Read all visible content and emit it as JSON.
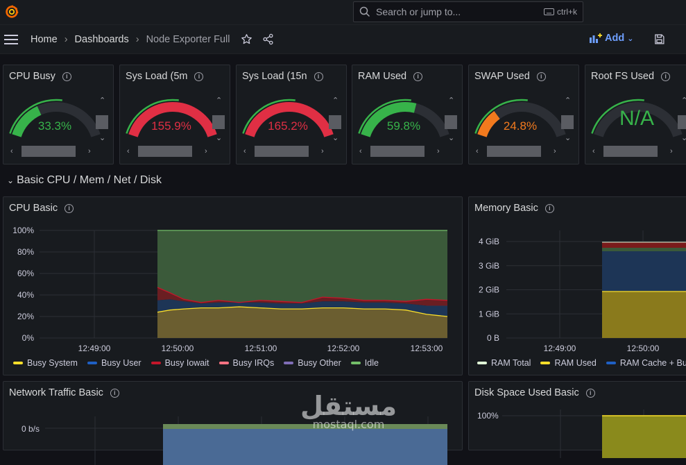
{
  "search": {
    "placeholder": "Search or jump to...",
    "shortcut": "ctrl+k"
  },
  "breadcrumb": {
    "home": "Home",
    "dashboards": "Dashboards",
    "current": "Node Exporter Full"
  },
  "toolbar": {
    "add_label": "Add"
  },
  "gauges": [
    {
      "title": "CPU Busy",
      "value": "33.3%",
      "fraction": 0.333,
      "color": "#37b34a"
    },
    {
      "title": "Sys Load (5m",
      "value": "155.9%",
      "fraction": 1.0,
      "color": "#e02f44"
    },
    {
      "title": "Sys Load (15n",
      "value": "165.2%",
      "fraction": 1.0,
      "color": "#e02f44"
    },
    {
      "title": "RAM Used",
      "value": "59.8%",
      "fraction": 0.598,
      "color": "#37b34a"
    },
    {
      "title": "SWAP Used",
      "value": "24.8%",
      "fraction": 0.248,
      "color": "#f27a1e"
    },
    {
      "title": "Root FS Used",
      "value": "N/A",
      "fraction": 0,
      "color": "#37b34a"
    }
  ],
  "row": {
    "title": "Basic CPU / Mem / Net / Disk"
  },
  "cpu_panel": {
    "title": "CPU Basic",
    "y_ticks": [
      "100%",
      "80%",
      "60%",
      "40%",
      "20%",
      "0%"
    ],
    "x_ticks": [
      "12:49:00",
      "12:50:00",
      "12:51:00",
      "12:52:00",
      "12:53:00"
    ],
    "legend": [
      {
        "name": "Busy System",
        "color": "#fade2a"
      },
      {
        "name": "Busy User",
        "color": "#1f60c4"
      },
      {
        "name": "Busy Iowait",
        "color": "#c4162a"
      },
      {
        "name": "Busy IRQs",
        "color": "#ff7383"
      },
      {
        "name": "Busy Other",
        "color": "#806eb7"
      },
      {
        "name": "Idle",
        "color": "#73bf69"
      }
    ]
  },
  "memory_panel": {
    "title": "Memory Basic",
    "y_ticks": [
      "4 GiB",
      "3 GiB",
      "2 GiB",
      "1 GiB",
      "0 B"
    ],
    "x_ticks": [
      "12:49:00",
      "12:50:00"
    ],
    "legend": [
      {
        "name": "RAM Total",
        "color": "#e0f9d7"
      },
      {
        "name": "RAM Used",
        "color": "#fade2a"
      },
      {
        "name": "RAM Cache + Bu",
        "color": "#1f60c4"
      }
    ]
  },
  "network_panel": {
    "title": "Network Traffic Basic",
    "y_tick": "0 b/s"
  },
  "disk_panel": {
    "title": "Disk Space Used Basic",
    "y_tick": "100%"
  },
  "watermark": {
    "arabic": "مستقل",
    "latin": "mostaql.com"
  }
}
